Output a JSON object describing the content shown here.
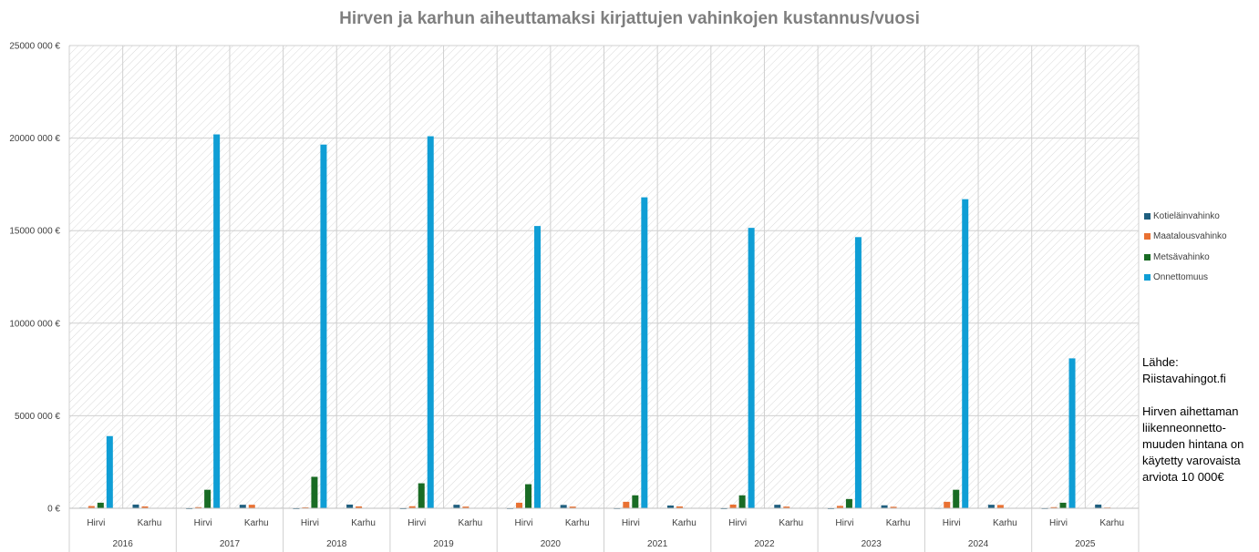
{
  "chart_data": {
    "type": "bar",
    "title": "Hirven ja karhun aiheuttamaksi kirjattujen vahinkojen kustannus/vuosi",
    "xlabel": "",
    "ylabel": "",
    "ylim": [
      0,
      25000000
    ],
    "y_ticks": [
      "0 €",
      "5000 000 €",
      "10000 000 €",
      "15000 000 €",
      "20000 000 €",
      "25000 000 €"
    ],
    "y_tick_values": [
      0,
      5000000,
      10000000,
      15000000,
      20000000,
      25000000
    ],
    "years": [
      "2016",
      "2017",
      "2018",
      "2019",
      "2020",
      "2021",
      "2022",
      "2023",
      "2024",
      "2025"
    ],
    "animals": [
      "Hirvi",
      "Karhu"
    ],
    "categories": [
      "2016 Hirvi",
      "2016 Karhu",
      "2017 Hirvi",
      "2017 Karhu",
      "2018 Hirvi",
      "2018 Karhu",
      "2019 Hirvi",
      "2019 Karhu",
      "2020 Hirvi",
      "2020 Karhu",
      "2021 Hirvi",
      "2021 Karhu",
      "2022 Hirvi",
      "2022 Karhu",
      "2023 Hirvi",
      "2023 Karhu",
      "2024 Hirvi",
      "2024 Karhu",
      "2025 Hirvi",
      "2025 Karhu"
    ],
    "series": [
      {
        "name": "Kotieläinvahinko",
        "color": "#1f5f7f",
        "values": [
          30000,
          200000,
          5000,
          190000,
          5000,
          200000,
          5000,
          190000,
          10000,
          180000,
          10000,
          150000,
          5000,
          190000,
          5000,
          160000,
          20000,
          190000,
          10000,
          200000
        ]
      },
      {
        "name": "Maatalousvahinko",
        "color": "#e97132",
        "values": [
          120000,
          100000,
          60000,
          190000,
          50000,
          100000,
          110000,
          90000,
          300000,
          90000,
          350000,
          100000,
          200000,
          90000,
          130000,
          80000,
          350000,
          180000,
          60000,
          40000
        ]
      },
      {
        "name": "Metsävahinko",
        "color": "#196b24",
        "values": [
          300000,
          0,
          1000000,
          0,
          1700000,
          0,
          1350000,
          0,
          1300000,
          0,
          700000,
          0,
          700000,
          0,
          500000,
          0,
          1000000,
          0,
          300000,
          0
        ]
      },
      {
        "name": "Onnettomuus",
        "color": "#0f9ed5",
        "values": [
          3900000,
          0,
          20200000,
          0,
          19650000,
          0,
          20100000,
          0,
          15250000,
          0,
          16800000,
          0,
          15150000,
          0,
          14650000,
          0,
          16700000,
          0,
          8100000,
          0
        ]
      }
    ],
    "legend_position": "right",
    "grid": true
  },
  "note": {
    "text": "Lähde:\nRiistavahingot.fi\n\nHirven aihettaman liikenneonnetto-\nmuuden hintana on käytetty varovaista arviota 10 000€"
  }
}
